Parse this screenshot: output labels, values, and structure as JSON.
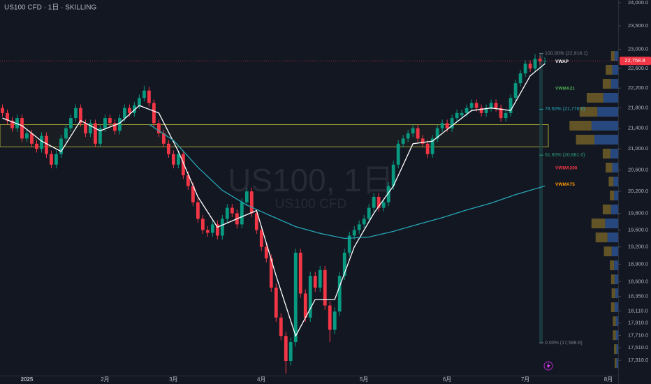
{
  "header": {
    "title": "US100 CFD · 1日 · SKILLING"
  },
  "watermark": {
    "title": "US100, 1日",
    "subtitle": "US100 CFD"
  },
  "chart_data": {
    "type": "candlestick",
    "log_scale": true,
    "xlim": [
      -0.5,
      126
    ],
    "ylim": [
      17070,
      24061
    ],
    "xticks": [
      {
        "value": 5,
        "label": "2025"
      },
      {
        "value": 21,
        "label": "2月"
      },
      {
        "value": 35,
        "label": "3月"
      },
      {
        "value": 53,
        "label": "4月"
      },
      {
        "value": 74,
        "label": "5月"
      },
      {
        "value": 91,
        "label": "6月"
      },
      {
        "value": 107,
        "label": "7月"
      },
      {
        "value": 124,
        "label": "8月"
      }
    ],
    "yticks": [
      {
        "value": 24000,
        "label": "24,000.0"
      },
      {
        "value": 23500,
        "label": "23,500.0"
      },
      {
        "value": 23000,
        "label": "23,000.0"
      },
      {
        "value": 22600,
        "label": "22,600.0"
      },
      {
        "value": 22200,
        "label": "22,200.0"
      },
      {
        "value": 21800,
        "label": "21,800.0"
      },
      {
        "value": 21400,
        "label": "21,400.0"
      },
      {
        "value": 21000,
        "label": "21,000.0"
      },
      {
        "value": 20600,
        "label": "20,600.0"
      },
      {
        "value": 20200,
        "label": "20,200.0"
      },
      {
        "value": 19800,
        "label": "19,800.0"
      },
      {
        "value": 19500,
        "label": "19,500.0"
      },
      {
        "value": 19200,
        "label": "19,200.0"
      },
      {
        "value": 18900,
        "label": "18,900.0"
      },
      {
        "value": 18600,
        "label": "18,600.0"
      },
      {
        "value": 18350,
        "label": "18,350.0"
      },
      {
        "value": 18110,
        "label": "18,110.0"
      },
      {
        "value": 17910,
        "label": "17,910.0"
      },
      {
        "value": 17710,
        "label": "17,710.0"
      },
      {
        "value": 17510,
        "label": "17,510.0"
      },
      {
        "value": 17310,
        "label": "17,310.0"
      }
    ],
    "up_color": "#089981",
    "down_color": "#f23645",
    "open": [
      21800,
      21700,
      21550,
      21400,
      21600,
      21200,
      21300,
      21100,
      21000,
      21250,
      20900,
      20700,
      20900,
      21200,
      21400,
      21600,
      21800,
      21500,
      21300,
      21500,
      21100,
      21400,
      21600,
      21500,
      21350,
      21600,
      21800,
      21700,
      21850,
      22000,
      22150,
      21900,
      21500,
      21300,
      21100,
      20900,
      20700,
      20900,
      20500,
      20300,
      20000,
      19700,
      19500,
      19450,
      19600,
      19400,
      19700,
      19900,
      19800,
      19600,
      20000,
      20200,
      19800,
      19500,
      19200,
      19000,
      18500,
      18000,
      17700,
      17300,
      17600,
      19100,
      18400,
      18000,
      18700,
      18500,
      18800,
      18200,
      17800,
      18100,
      18700,
      19100,
      19400,
      19500,
      19600,
      19700,
      19900,
      20100,
      19900,
      20000,
      20300,
      20700,
      21100,
      21200,
      21300,
      21400,
      21200,
      21100,
      20900,
      21200,
      21400,
      21500,
      21400,
      21600,
      21650,
      21700,
      21800,
      21900,
      21800,
      21700,
      21800,
      21900,
      21800,
      21600,
      21700,
      22000,
      22300,
      22500,
      22700,
      22600,
      22800,
      22750
    ],
    "high": [
      21870,
      21770,
      21620,
      21670,
      21670,
      21370,
      21370,
      21170,
      21320,
      21320,
      20970,
      20970,
      21270,
      21470,
      21670,
      21870,
      21870,
      21570,
      21570,
      21570,
      21470,
      21670,
      21670,
      21570,
      21670,
      21870,
      21870,
      21920,
      22070,
      22250,
      22220,
      21970,
      21570,
      21370,
      21170,
      20970,
      20970,
      20970,
      20570,
      20370,
      20070,
      19770,
      19570,
      19670,
      19670,
      19770,
      19970,
      19970,
      19870,
      20070,
      20270,
      20270,
      19870,
      19570,
      19270,
      19070,
      18570,
      18070,
      17770,
      17670,
      19170,
      19170,
      18470,
      18770,
      18770,
      18870,
      18870,
      18270,
      18170,
      18770,
      19170,
      19470,
      19570,
      19670,
      19770,
      19970,
      20170,
      20170,
      20070,
      20370,
      20770,
      21170,
      21270,
      21370,
      21470,
      21470,
      21270,
      21170,
      21270,
      21470,
      21570,
      21570,
      21670,
      21770,
      21770,
      21870,
      21970,
      21970,
      21870,
      21870,
      21970,
      21970,
      21870,
      21770,
      22070,
      22370,
      22570,
      22770,
      22770,
      22900,
      22870,
      22830
    ],
    "low": [
      21630,
      21480,
      21330,
      21330,
      21130,
      21130,
      21030,
      20930,
      20930,
      20830,
      20630,
      20630,
      20830,
      21130,
      21330,
      21530,
      21430,
      21230,
      21230,
      21030,
      21030,
      21330,
      21430,
      21280,
      21280,
      21530,
      21630,
      21630,
      21780,
      21930,
      21830,
      21430,
      21230,
      21030,
      20830,
      20630,
      20630,
      20430,
      20230,
      19930,
      19630,
      19430,
      19380,
      19380,
      19330,
      19330,
      19630,
      19730,
      19530,
      19530,
      19930,
      19730,
      19430,
      19130,
      18930,
      18430,
      17930,
      17630,
      17100,
      17230,
      17530,
      18330,
      17930,
      17930,
      18430,
      18430,
      18130,
      17600,
      17730,
      18030,
      18630,
      19030,
      19330,
      19430,
      19530,
      19630,
      19830,
      19830,
      19830,
      19930,
      20230,
      20630,
      21030,
      21130,
      21230,
      21130,
      21030,
      20830,
      20830,
      21130,
      21330,
      21330,
      21330,
      21530,
      21580,
      21630,
      21730,
      21730,
      21630,
      21630,
      21730,
      21730,
      21530,
      21530,
      21630,
      21930,
      22230,
      22430,
      22530,
      22530,
      22680,
      22680
    ],
    "close": [
      21700,
      21550,
      21400,
      21600,
      21200,
      21300,
      21100,
      21000,
      21250,
      20900,
      20700,
      20900,
      21200,
      21400,
      21600,
      21800,
      21500,
      21300,
      21500,
      21100,
      21400,
      21600,
      21500,
      21350,
      21600,
      21800,
      21700,
      21850,
      22000,
      22150,
      21900,
      21500,
      21300,
      21100,
      20900,
      20700,
      20900,
      20500,
      20300,
      20000,
      19700,
      19500,
      19450,
      19600,
      19400,
      19700,
      19900,
      19800,
      19600,
      20000,
      20200,
      19800,
      19500,
      19200,
      19000,
      18500,
      18000,
      17700,
      17300,
      17600,
      19100,
      18400,
      18000,
      18700,
      18500,
      18800,
      18200,
      17800,
      18100,
      18700,
      19100,
      19400,
      19500,
      19600,
      19700,
      19900,
      20100,
      19900,
      20000,
      20300,
      20700,
      21100,
      21200,
      21300,
      21400,
      21200,
      21100,
      20900,
      21200,
      21400,
      21500,
      21400,
      21600,
      21700,
      21700,
      21800,
      21900,
      21800,
      21700,
      21800,
      21900,
      21800,
      21600,
      21700,
      22000,
      22300,
      22500,
      22700,
      22600,
      22800,
      22750,
      22758.8
    ],
    "lines": [
      {
        "color": "#ffffff",
        "x": [
          0,
          4,
          8,
          12,
          16,
          20,
          24,
          28,
          32,
          36,
          40,
          44,
          48,
          52,
          56,
          60,
          64,
          68,
          72,
          76,
          80,
          84,
          88,
          92,
          96,
          100,
          104,
          108,
          111
        ],
        "values": [
          21600,
          21450,
          21150,
          20950,
          21550,
          21350,
          21500,
          21850,
          21700,
          20950,
          20100,
          19550,
          19700,
          19850,
          18700,
          17700,
          18300,
          18300,
          19200,
          19800,
          20300,
          21100,
          21150,
          21450,
          21750,
          21800,
          21750,
          22450,
          22700
        ]
      },
      {
        "color": "#26a5b5",
        "x": [
          30,
          35,
          40,
          45,
          50,
          55,
          60,
          65,
          70,
          75,
          80,
          85,
          90,
          95,
          100,
          105,
          111
        ],
        "values": [
          21477,
          21164,
          20650,
          20220,
          19950,
          19750,
          19560,
          19440,
          19350,
          19375,
          19475,
          19600,
          19720,
          19860,
          19985,
          20140,
          20300
        ]
      }
    ],
    "indicator_labels": [
      {
        "text": "VWAP",
        "color": "#ffffff",
        "value": 22740
      },
      {
        "text": "VWMA21",
        "color": "#4caf50",
        "value": 22194
      },
      {
        "text": "VWMA200",
        "color": "#f23645",
        "value": 20636
      },
      {
        "text": "VWMA75",
        "color": "#ff9800",
        "value": 20325
      }
    ],
    "fib_levels": [
      {
        "text": "100.00% (22,916.1)",
        "color": "#787b86",
        "value": 22916.1
      },
      {
        "text": "78.60% (21,776.0)",
        "color": "#26a5b5",
        "value": 21776.0
      },
      {
        "text": "61.80% (20,881.0)",
        "color": "#2e9e7a",
        "value": 20881.0
      },
      {
        "text": "0.00% (17,588.6)",
        "color": "#787b86",
        "value": 17588.6
      }
    ],
    "zone": {
      "values": [
        21040,
        21470
      ],
      "color": "#c8c83c"
    },
    "last_price": {
      "value": 22758.8,
      "label": "22,758.8",
      "color": "#f23645"
    },
    "volume_profile": {
      "xlim": [
        0,
        100
      ],
      "up_color": "#2f5a9e",
      "down_color": "#7d6a28",
      "prices": [
        22863,
        22574,
        22287,
        22005,
        21725,
        21450,
        21178,
        20909,
        20644,
        20383,
        20124,
        19869,
        19617,
        19368,
        19122,
        18880,
        18640,
        18404,
        18171,
        17940,
        17712,
        17488,
        17266
      ],
      "up": [
        6,
        10,
        12,
        25,
        35,
        45,
        40,
        13,
        10,
        8,
        7,
        12,
        22,
        18,
        11,
        7,
        6,
        5,
        6,
        4,
        4,
        3,
        3
      ],
      "down": [
        6,
        11,
        14,
        28,
        30,
        37,
        31,
        13,
        11,
        8,
        7,
        14,
        23,
        20,
        13,
        7,
        6,
        6,
        6,
        5,
        5,
        4,
        3
      ]
    }
  }
}
